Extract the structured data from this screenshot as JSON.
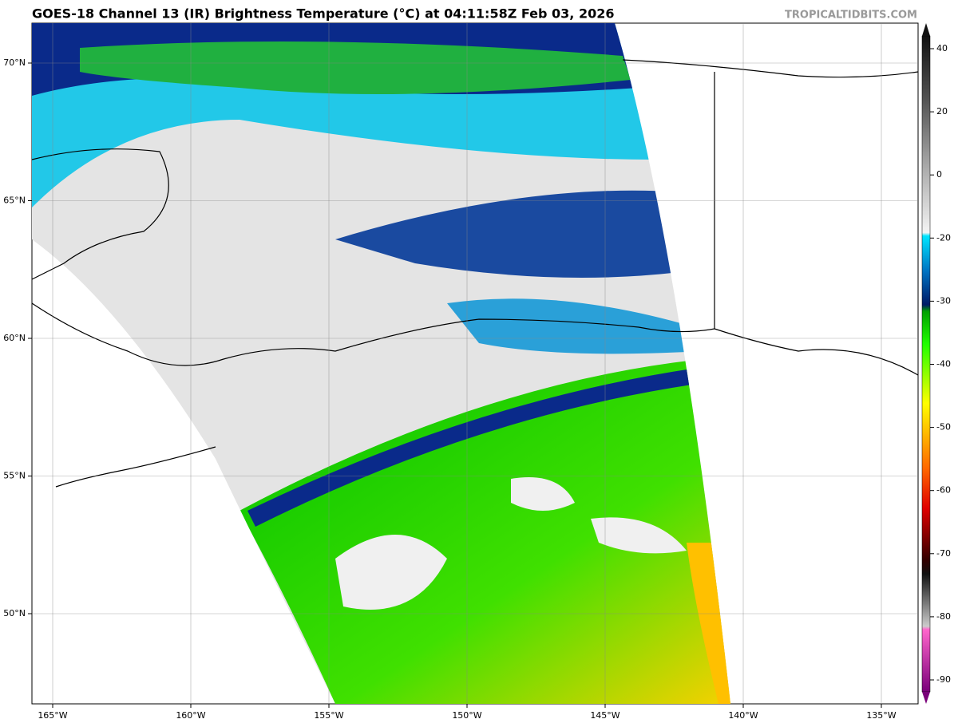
{
  "header": {
    "title": "GOES-18 Channel 13 (IR) Brightness Temperature (°C) at 04:11:58Z Feb 03, 2026",
    "watermark": "TROPICALTIDBITS.COM"
  },
  "map": {
    "lat_labels": [
      "70°N",
      "65°N",
      "60°N",
      "55°N",
      "50°N"
    ],
    "lon_labels": [
      "165°W",
      "160°W",
      "155°W",
      "150°W",
      "145°W",
      "140°W",
      "135°W"
    ]
  },
  "colorbar": {
    "ticks": [
      40,
      20,
      0,
      -20,
      -30,
      -40,
      -50,
      -60,
      -70,
      -80,
      -90
    ]
  }
}
